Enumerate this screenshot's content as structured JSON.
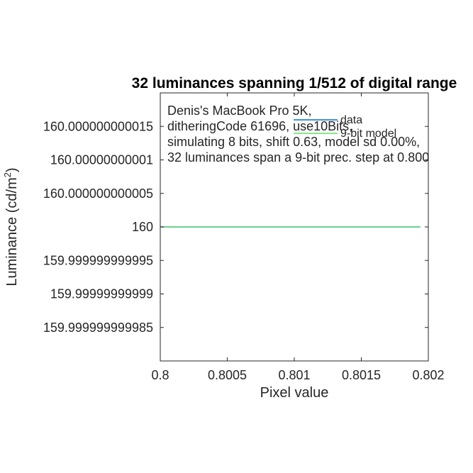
{
  "chart_data": {
    "type": "line",
    "title": "32 luminances spanning 1/512 of digital range",
    "xlabel": "Pixel value",
    "ylabel_main": "Luminance (cd/m",
    "ylabel_sup": "2",
    "ylabel_close": ")",
    "xlim": [
      0.8,
      0.802
    ],
    "ylim": [
      159.99999999998,
      160.00000000002
    ],
    "x_ticks": [
      0.8,
      0.8005,
      0.801,
      0.8015,
      0.802
    ],
    "x_tick_labels": [
      "0.8",
      "0.8005",
      "0.801",
      "0.8015",
      "0.802"
    ],
    "y_ticks": [
      160.000000000015,
      160.00000000001,
      160.000000000005,
      160,
      159.999999999995,
      159.99999999999,
      159.999999999985
    ],
    "y_tick_labels": [
      "160.000000000015",
      "160.00000000001",
      "160.000000000005",
      "160",
      "159.999999999995",
      "159.99999999999",
      "159.999999999985"
    ],
    "grid": false,
    "legend_position": "top-right",
    "annotation_lines": [
      "Denis's MacBook Pro 5K,",
      "ditheringCode 61696, use10Bits,",
      "simulating 8 bits, shift 0.63, model sd 0.00%,",
      "32 luminances span a 9-bit prec. step at 0.800"
    ],
    "series": [
      {
        "name": "data",
        "color": "#0072bd",
        "x": [
          0.8,
          0.801125,
          0.801125,
          0.80194
        ],
        "y": [
          160,
          160,
          160,
          160
        ]
      },
      {
        "name": "9-bit model",
        "color": "#5ee05e",
        "x": [
          0.8,
          0.801125,
          0.801125,
          0.80194
        ],
        "y": [
          160,
          160,
          160,
          160
        ]
      }
    ]
  }
}
